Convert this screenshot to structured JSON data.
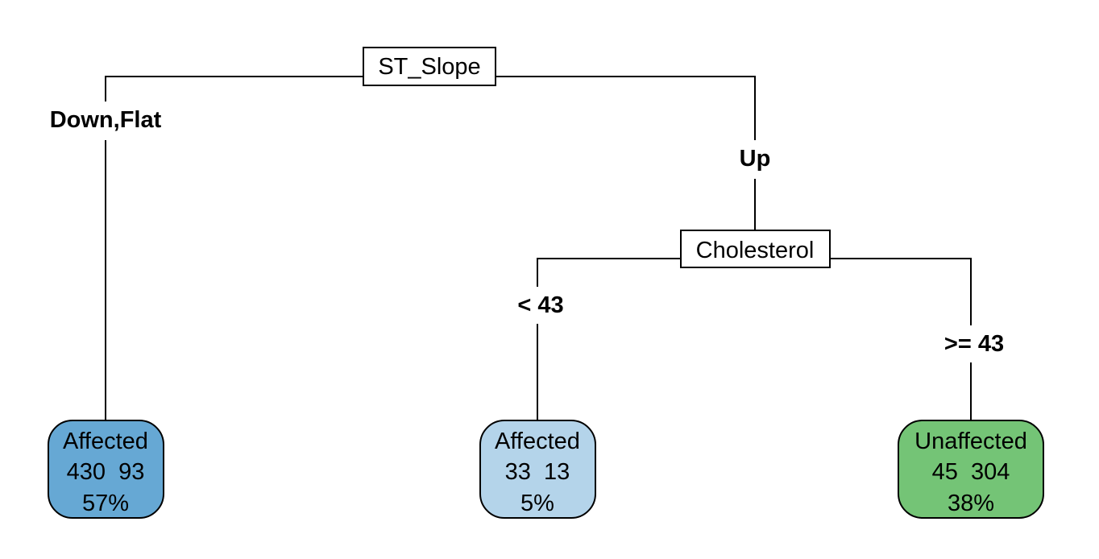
{
  "nodes": {
    "root": {
      "label": "ST_Slope"
    },
    "cholesterol": {
      "label": "Cholesterol"
    }
  },
  "edges": {
    "root_left": {
      "label": "Down,Flat"
    },
    "root_right": {
      "label": "Up"
    },
    "chol_left": {
      "label": "< 43"
    },
    "chol_right": {
      "label": ">= 43"
    }
  },
  "leaves": [
    {
      "class": "Affected",
      "counts": "430  93",
      "percent": "57%",
      "fill": "#66a8d4"
    },
    {
      "class": "Affected",
      "counts": "33  13",
      "percent": "5%",
      "fill": "#b4d4ea"
    },
    {
      "class": "Unaffected",
      "counts": "45  304",
      "percent": "38%",
      "fill": "#74c476"
    }
  ]
}
